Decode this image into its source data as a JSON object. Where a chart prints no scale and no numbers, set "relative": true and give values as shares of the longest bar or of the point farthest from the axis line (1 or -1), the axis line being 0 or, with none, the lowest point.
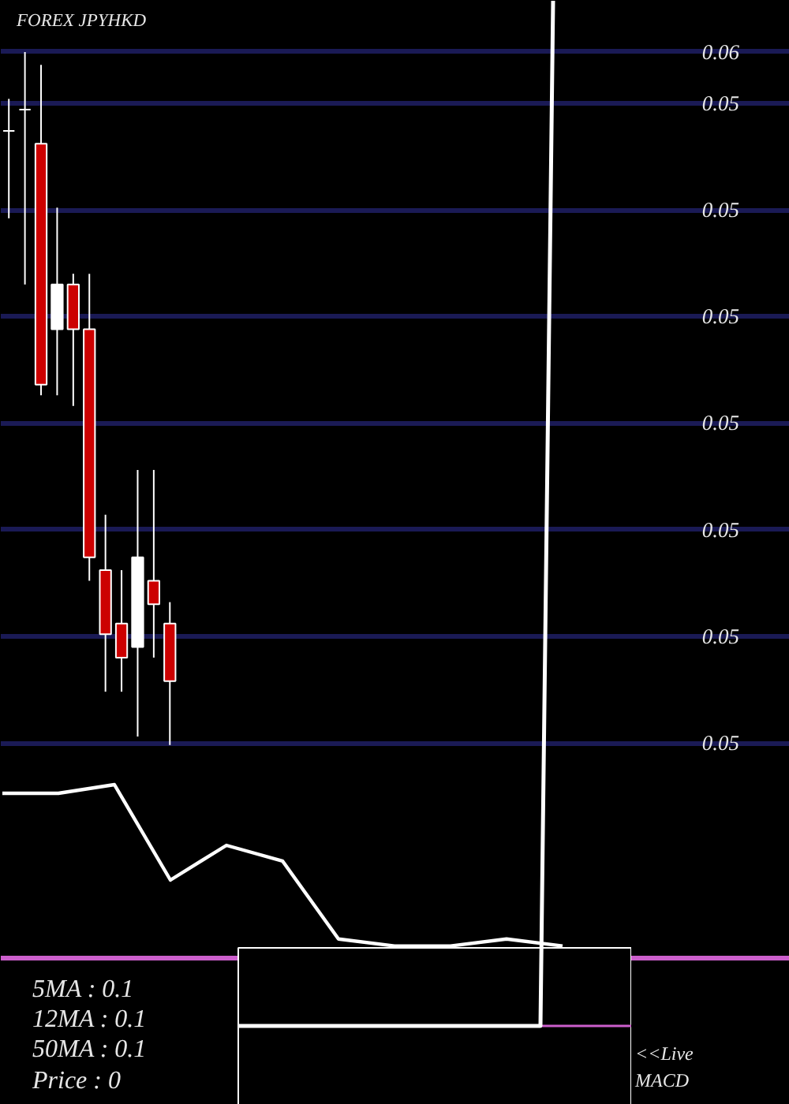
{
  "chart_data": [
    {
      "type": "candlestick",
      "title": "FOREX  JPYHKD",
      "categories": [
        null,
        null,
        null,
        null,
        null,
        null,
        null,
        null,
        null,
        null,
        null,
        null,
        null,
        null,
        null,
        null,
        null,
        null,
        null,
        null,
        null,
        null,
        null,
        null,
        null,
        null,
        null,
        null,
        null,
        null,
        null,
        null,
        null,
        null,
        null,
        null,
        null,
        null,
        null,
        null,
        null,
        null,
        null,
        null,
        null,
        null,
        null,
        null,
        null
      ],
      "ohlc": [
        [
          0.05467,
          0.05482,
          0.05426,
          0.05467
        ],
        [
          0.05477,
          0.05504,
          0.05395,
          0.05477
        ],
        [
          0.05461,
          0.05498,
          0.05343,
          0.05348
        ],
        [
          0.05374,
          0.05431,
          0.05343,
          0.05395
        ],
        [
          0.05395,
          0.054,
          0.05338,
          0.05374
        ],
        [
          0.05374,
          0.054,
          0.05256,
          0.05267
        ],
        [
          0.05261,
          0.05287,
          0.05204,
          0.05231
        ],
        [
          0.05236,
          0.05261,
          0.05204,
          0.0522
        ],
        [
          0.05225,
          0.05308,
          0.05183,
          0.05267
        ],
        [
          0.05256,
          0.05308,
          0.0522,
          0.05245
        ],
        [
          0.05236,
          0.05246,
          0.05179,
          0.05209
        ],
        null,
        null,
        null,
        null,
        null,
        null,
        null,
        null,
        null,
        null,
        null,
        null,
        null,
        null,
        null,
        null,
        null,
        null,
        null,
        null,
        null,
        null,
        null,
        null,
        null,
        null,
        null,
        null,
        null,
        null,
        null,
        null,
        null,
        null,
        null,
        null,
        null,
        null
      ],
      "colors": [
        "#ffffff",
        "#ffffff",
        "#cc0000",
        "#ffffff",
        "#cc0000",
        "#cc0000",
        "#cc0000",
        "#cc0000",
        "#ffffff",
        "#cc0000",
        "#cc0000",
        null,
        null,
        null,
        null,
        null,
        null,
        null,
        null,
        null,
        null,
        null,
        null,
        null,
        null,
        null,
        null,
        null,
        null,
        null,
        null,
        null,
        null,
        null,
        null,
        null,
        null,
        null,
        null,
        null,
        null,
        null,
        null,
        null,
        null,
        null,
        null,
        null,
        null
      ],
      "ylim": [
        0.05173,
        0.05528
      ],
      "yticks": [
        {
          "value": 0.05504,
          "label": "0.06"
        },
        {
          "value": 0.0548,
          "label": "0.05"
        },
        {
          "value": 0.0543,
          "label": "0.05"
        },
        {
          "value": 0.0538,
          "label": "0.05"
        },
        {
          "value": 0.0533,
          "label": "0.05"
        },
        {
          "value": 0.0528,
          "label": "0.05"
        },
        {
          "value": 0.0523,
          "label": "0.05"
        },
        {
          "value": 0.0518,
          "label": "0.05"
        }
      ],
      "grid": "y"
    },
    {
      "type": "line",
      "relative": true,
      "categories": [
        null,
        null,
        null,
        null,
        null,
        null,
        null,
        null,
        null,
        null,
        null
      ],
      "series": [
        {
          "color": "#ffffff",
          "values": [
            0.95,
            0.95,
            1.0,
            0.45,
            0.65,
            0.56,
            0.11,
            0.07,
            0.07,
            0.11,
            0.07
          ]
        }
      ],
      "ref_lines": [
        {
          "axis": "y",
          "value": 0,
          "color": "#cc5fcc"
        }
      ],
      "annotations": [
        "5MA : 0.1",
        "12MA : 0.1",
        "50MA : 0.1",
        "Price  : 0",
        "<<Live MACD"
      ]
    },
    {
      "type": "line",
      "relative": true,
      "categories": [
        null,
        null,
        null,
        null,
        null,
        null,
        null,
        null,
        null,
        null,
        null,
        null,
        null,
        null,
        null,
        null,
        null,
        null,
        null,
        null,
        null,
        null,
        null,
        null,
        null,
        null
      ],
      "series": [
        {
          "color": "#ffffff",
          "values": [
            0,
            0,
            0,
            0,
            0,
            0,
            0,
            0,
            0,
            0,
            0,
            0,
            0,
            0,
            0,
            0,
            0,
            0,
            0,
            0,
            0,
            0,
            0,
            0,
            0,
            1
          ]
        }
      ],
      "ref_lines": [
        {
          "axis": "y",
          "value": 0,
          "color": "#cc5fcc"
        }
      ]
    }
  ]
}
